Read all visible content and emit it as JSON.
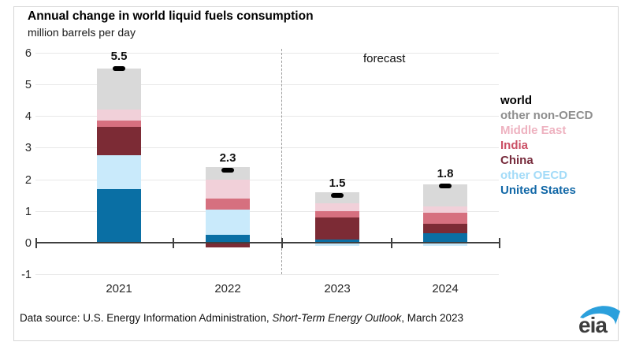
{
  "title": "Annual change in world liquid fuels consumption",
  "subtitle": "million barrels per day",
  "forecast_label": "forecast",
  "footer": {
    "prefix": "Data source: U.S. Energy Information Administration, ",
    "italic": "Short-Term Energy Outlook",
    "suffix": ", March 2023"
  },
  "logo_text": "eia",
  "colors": {
    "axis": "#3f3f3f",
    "gridline": "#e8e8e8",
    "forecast_divider": "#9a9a9a",
    "logo_blue": "#2ba0dc",
    "logo_gray": "#3c3c3c"
  },
  "chart_data": {
    "type": "bar",
    "stacked": true,
    "title": "Annual change in world liquid fuels consumption",
    "ylabel": "million barrels per day",
    "categories": [
      "2021",
      "2022",
      "2023",
      "2024"
    ],
    "series": [
      {
        "name": "United States",
        "color": "#0a6fa4",
        "values": [
          1.7,
          0.25,
          0.1,
          0.3
        ]
      },
      {
        "name": "other OECD",
        "color": "#c9eafb",
        "values": [
          1.05,
          0.8,
          -0.1,
          -0.1
        ]
      },
      {
        "name": "China",
        "color": "#7c2b35",
        "values": [
          0.9,
          -0.15,
          0.7,
          0.3
        ]
      },
      {
        "name": "India",
        "color": "#d6707f",
        "values": [
          0.2,
          0.35,
          0.2,
          0.35
        ]
      },
      {
        "name": "Middle East",
        "color": "#f1d0d9",
        "values": [
          0.35,
          0.6,
          0.25,
          0.2
        ]
      },
      {
        "name": "other non-OECD",
        "color": "#d9d9d9",
        "values": [
          1.3,
          0.4,
          0.35,
          0.7
        ]
      }
    ],
    "world_markers": {
      "name": "world",
      "color": "#000000",
      "values": [
        5.5,
        2.3,
        1.5,
        1.8
      ]
    },
    "bar_labels": [
      "5.5",
      "2.3",
      "1.5",
      "1.8"
    ],
    "ylim": [
      -1,
      6
    ],
    "yticks": [
      6,
      5,
      4,
      3,
      2,
      1,
      0,
      -1
    ],
    "grid": true,
    "legend_position": "right",
    "forecast_from": "2023"
  },
  "legend": [
    {
      "label": "world",
      "color": "#000000"
    },
    {
      "label": "other non-OECD",
      "color": "#8e8e8e"
    },
    {
      "label": "Middle East",
      "color": "#eeb2c0"
    },
    {
      "label": "India",
      "color": "#cb5065"
    },
    {
      "label": "China",
      "color": "#772b3c"
    },
    {
      "label": "other OECD",
      "color": "#a3dbf8"
    },
    {
      "label": "United States",
      "color": "#1268a7"
    }
  ]
}
